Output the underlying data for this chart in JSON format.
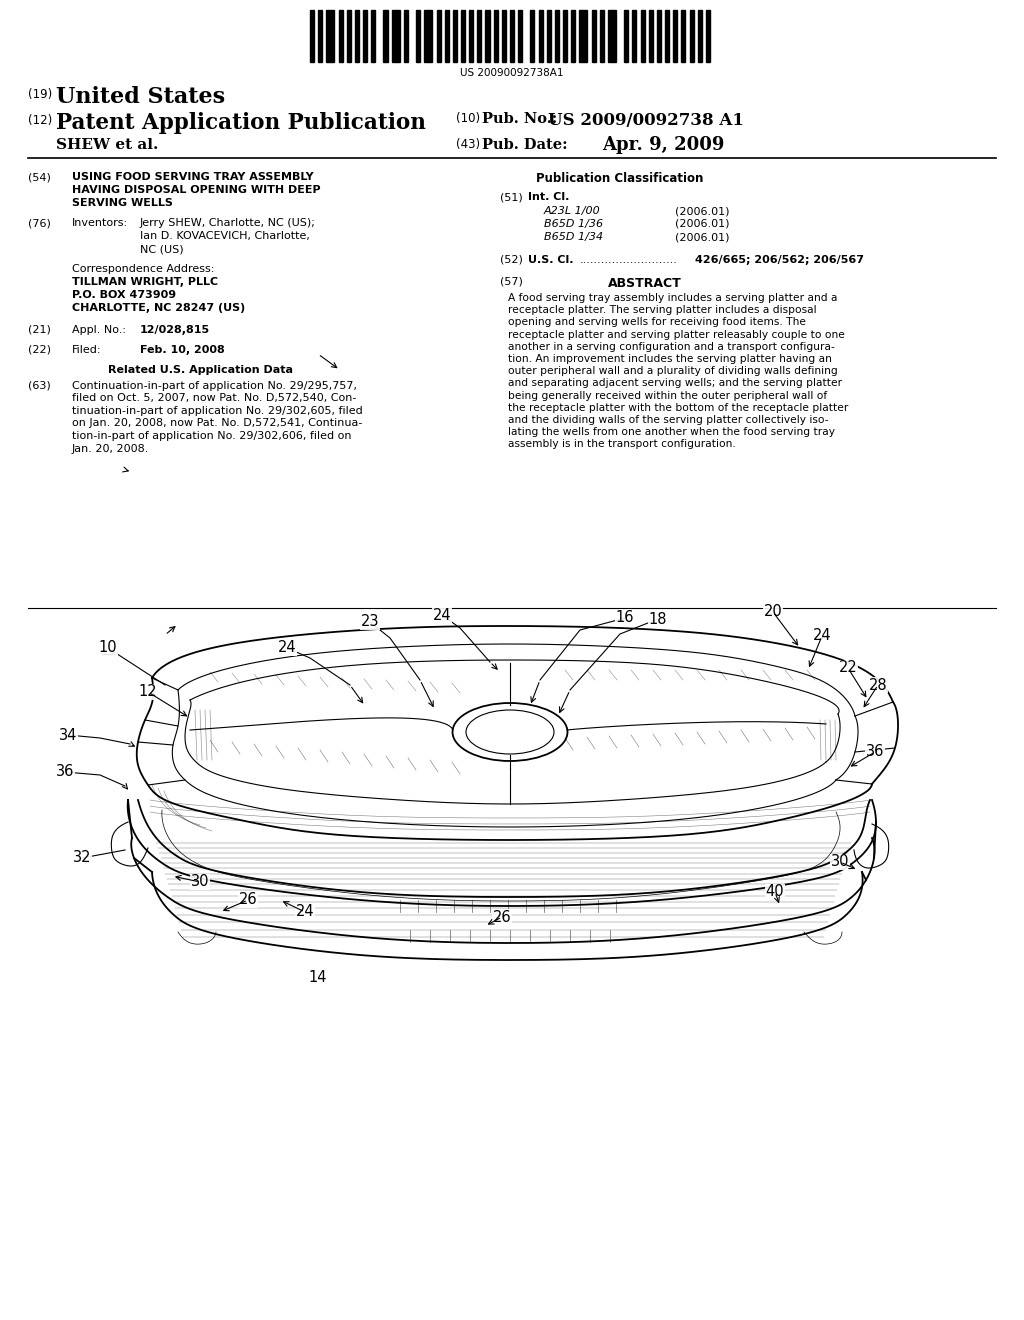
{
  "background_color": "#ffffff",
  "barcode_text": "US 20090092738A1",
  "header": {
    "num19": "(19)",
    "country": "United States",
    "num12": "(12)",
    "pub_type": "Patent Application Publication",
    "num10": "(10)",
    "pub_no_label": "Pub. No.:",
    "pub_no": "US 2009/0092738 A1",
    "inventors_short": "SHEW et al.",
    "num43": "(43)",
    "pub_date_label": "Pub. Date:",
    "pub_date": "Apr. 9, 2009"
  },
  "left_col": {
    "num54": "(54)",
    "title_line1": "USING FOOD SERVING TRAY ASSEMBLY",
    "title_line2": "HAVING DISPOSAL OPENING WITH DEEP",
    "title_line3": "SERVING WELLS",
    "num76": "(76)",
    "inventors_label": "Inventors:",
    "inv_line1": "Jerry SHEW, Charlotte, NC (US);",
    "inv_line2": "Ian D. KOVACEVICH, Charlotte,",
    "inv_line3": "NC (US)",
    "corr_address_label": "Correspondence Address:",
    "corr_line1": "TILLMAN WRIGHT, PLLC",
    "corr_line2": "P.O. BOX 473909",
    "corr_line3": "CHARLOTTE, NC 28247 (US)",
    "num21": "(21)",
    "appl_no_label": "Appl. No.:",
    "appl_no": "12/028,815",
    "num22": "(22)",
    "filed_label": "Filed:",
    "filed": "Feb. 10, 2008",
    "related_title": "Related U.S. Application Data",
    "num63": "(63)",
    "rel_line1": "Continuation-in-part of application No. 29/295,757,",
    "rel_line2": "filed on Oct. 5, 2007, now Pat. No. D,572,540, Con-",
    "rel_line3": "tinuation-in-part of application No. 29/302,605, filed",
    "rel_line4": "on Jan. 20, 2008, now Pat. No. D,572,541, Continua-",
    "rel_line5": "tion-in-part of application No. 29/302,606, filed on",
    "rel_line6": "Jan. 20, 2008."
  },
  "right_col": {
    "pub_class_title": "Publication Classification",
    "num51": "(51)",
    "intcl_label": "Int. Cl.",
    "intcl_entries": [
      [
        "A23L 1/00",
        "(2006.01)"
      ],
      [
        "B65D 1/36",
        "(2006.01)"
      ],
      [
        "B65D 1/34",
        "(2006.01)"
      ]
    ],
    "num52": "(52)",
    "uscl_label": "U.S. Cl.",
    "uscl_dots": "...........................",
    "uscl_values": "426/665; 206/562; 206/567",
    "num57": "(57)",
    "abstract_title": "ABSTRACT",
    "abs_lines": [
      "A food serving tray assembly includes a serving platter and a",
      "receptacle platter. The serving platter includes a disposal",
      "opening and serving wells for receiving food items. The",
      "receptacle platter and serving platter releasably couple to one",
      "another in a serving configuration and a transport configura-",
      "tion. An improvement includes the serving platter having an",
      "outer peripheral wall and a plurality of dividing walls defining",
      "and separating adjacent serving wells; and the serving platter",
      "being generally received within the outer peripheral wall of",
      "the receptacle platter with the bottom of the receptacle platter",
      "and the dividing walls of the serving platter collectively iso-",
      "lating the wells from one another when the food serving tray",
      "assembly is in the transport configuration."
    ]
  }
}
